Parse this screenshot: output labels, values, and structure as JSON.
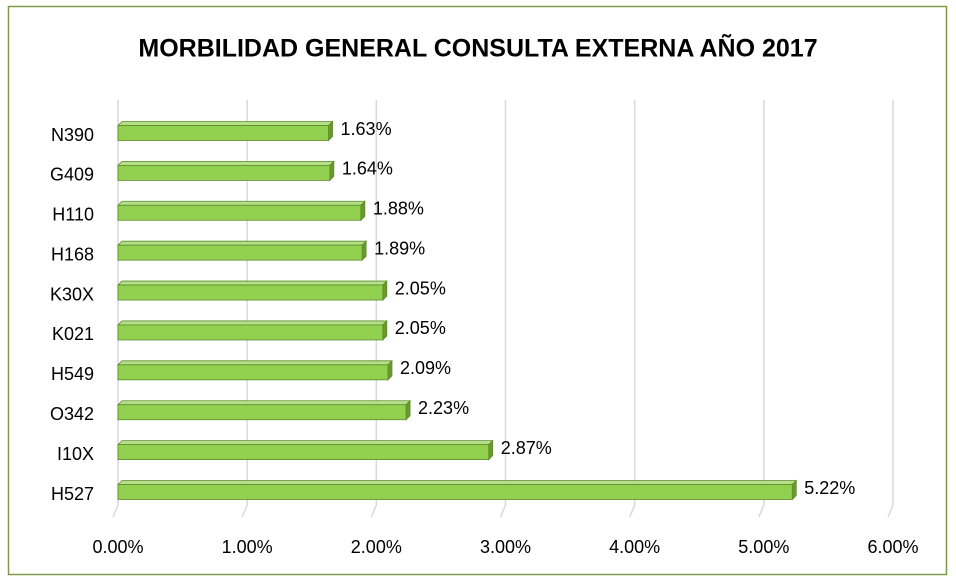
{
  "chart_data": {
    "type": "bar",
    "orientation": "horizontal",
    "title": "MORBILIDAD GENERAL CONSULTA EXTERNA AÑO 2017",
    "categories": [
      "N390",
      "G409",
      "H110",
      "H168",
      "K30X",
      "K021",
      "H549",
      "O342",
      "I10X",
      "H527"
    ],
    "values": [
      1.63,
      1.64,
      1.88,
      1.89,
      2.05,
      2.05,
      2.09,
      2.23,
      2.87,
      5.22
    ],
    "value_labels": [
      "1.63%",
      "1.64%",
      "1.88%",
      "1.89%",
      "2.05%",
      "2.05%",
      "2.09%",
      "2.23%",
      "2.87%",
      "5.22%"
    ],
    "color": "#92d050",
    "xlim": [
      0,
      6
    ],
    "xticks": [
      {
        "value": 0,
        "label": "0.00%"
      },
      {
        "value": 1,
        "label": "1.00%"
      },
      {
        "value": 2,
        "label": "2.00%"
      },
      {
        "value": 3,
        "label": "3.00%"
      },
      {
        "value": 4,
        "label": "4.00%"
      },
      {
        "value": 5,
        "label": "5.00%"
      },
      {
        "value": 6,
        "label": "6.00%"
      }
    ],
    "grid": true
  }
}
